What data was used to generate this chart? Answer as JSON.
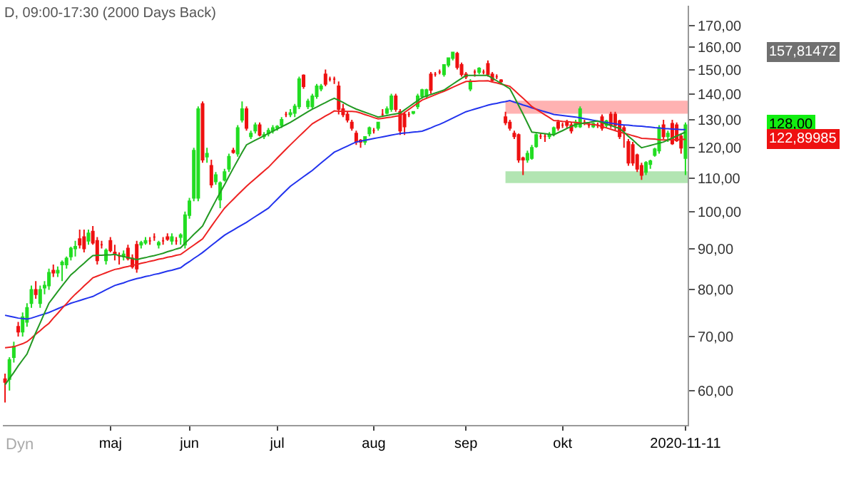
{
  "chart_data": {
    "type": "candlestick",
    "title": "D, 09:00-17:30 (2000 Days Back)",
    "categories": [
      null,
      null,
      null,
      null,
      null,
      null,
      null,
      null,
      null,
      null,
      null,
      null,
      null,
      null,
      null,
      null,
      null,
      null,
      null,
      null,
      null,
      null,
      null,
      null,
      "maj",
      null,
      null,
      null,
      null,
      null,
      null,
      null,
      null,
      null,
      null,
      null,
      null,
      null,
      null,
      null,
      null,
      null,
      "jun",
      null,
      null,
      null,
      null,
      null,
      null,
      null,
      null,
      null,
      null,
      null,
      null,
      null,
      null,
      null,
      null,
      null,
      null,
      null,
      "jul",
      null,
      null,
      null,
      null,
      null,
      null,
      null,
      null,
      null,
      null,
      null,
      null,
      null,
      null,
      null,
      null,
      null,
      null,
      null,
      null,
      null,
      "aug",
      null,
      null,
      null,
      null,
      null,
      null,
      null,
      null,
      null,
      null,
      null,
      null,
      null,
      null,
      null,
      null,
      null,
      null,
      null,
      null,
      "sep",
      null,
      null,
      null,
      null,
      null,
      null,
      null,
      null,
      null,
      null,
      null,
      null,
      null,
      null,
      null,
      null,
      null,
      null,
      null,
      null,
      null,
      "okt",
      null,
      null,
      null,
      null,
      null,
      null,
      null,
      null,
      null,
      null,
      null,
      null,
      null,
      null,
      null,
      null,
      null,
      null,
      null,
      null,
      null,
      null,
      null,
      null,
      null,
      null,
      null,
      "2020-11-11"
    ],
    "ohlc": [
      [
        62,
        63,
        58,
        61.5
      ],
      [
        62,
        66,
        60,
        65.5
      ],
      [
        66,
        69,
        65,
        68
      ],
      [
        72,
        73,
        70,
        71
      ],
      [
        71,
        75,
        70,
        74
      ],
      [
        73,
        77,
        72,
        76
      ],
      [
        77,
        81,
        76,
        80
      ],
      [
        80,
        82,
        78,
        79
      ],
      [
        77,
        81,
        76,
        80
      ],
      [
        80.5,
        82,
        79,
        81
      ],
      [
        81,
        85,
        80,
        84
      ],
      [
        84.5,
        86,
        83,
        84
      ],
      [
        84,
        85.5,
        83,
        84.5
      ],
      [
        86,
        87,
        82,
        86.5
      ],
      [
        86,
        88,
        85,
        87.5
      ],
      [
        88,
        90.5,
        87,
        90
      ],
      [
        90,
        92,
        88,
        90.5
      ],
      [
        92.5,
        95,
        90,
        91
      ],
      [
        93,
        95,
        89,
        90
      ],
      [
        92,
        95,
        91,
        94
      ],
      [
        94.5,
        96,
        91,
        91.5
      ],
      [
        92,
        93,
        86,
        87
      ],
      [
        91,
        92,
        90,
        91
      ],
      [
        87,
        90,
        86,
        89.5
      ],
      [
        92,
        93,
        89,
        89.5
      ],
      [
        89,
        91,
        87,
        88.5
      ],
      [
        88,
        89,
        86,
        88
      ],
      [
        88,
        89.5,
        87,
        88.5
      ],
      [
        90,
        91,
        87,
        87.5
      ],
      [
        87.5,
        88.5,
        85,
        85.5
      ],
      [
        91,
        92,
        84,
        85
      ],
      [
        91,
        92,
        90,
        91.5
      ],
      [
        91.5,
        93,
        91,
        92
      ],
      [
        92,
        93,
        91,
        92
      ],
      [
        93,
        94,
        92,
        93
      ],
      [
        91,
        92,
        90,
        91.5
      ],
      [
        92,
        93,
        91,
        92
      ],
      [
        93,
        94,
        92,
        92.5
      ],
      [
        92,
        94,
        91,
        93
      ],
      [
        92,
        93,
        91,
        92
      ],
      [
        93,
        94,
        91,
        93.5
      ],
      [
        91,
        100,
        90,
        99
      ],
      [
        99,
        104,
        98,
        103
      ],
      [
        104,
        120,
        103,
        119
      ],
      [
        104,
        135,
        103,
        134
      ],
      [
        136,
        137,
        115,
        116
      ],
      [
        117,
        120,
        115,
        118
      ],
      [
        114,
        116,
        107,
        108
      ],
      [
        109,
        112,
        108,
        111
      ],
      [
        103.5,
        109,
        101,
        108.5
      ],
      [
        109.5,
        113,
        109,
        112
      ],
      [
        113,
        118,
        112,
        117
      ],
      [
        119,
        120,
        118,
        118.5
      ],
      [
        118,
        128,
        117,
        127
      ],
      [
        130,
        137,
        129,
        134
      ],
      [
        134,
        135,
        126,
        127
      ],
      [
        124,
        126,
        123,
        125
      ],
      [
        126,
        129,
        125,
        128
      ],
      [
        128,
        129,
        124,
        124.5
      ],
      [
        124,
        125.5,
        123,
        124.5
      ],
      [
        125,
        127,
        124,
        126
      ],
      [
        126,
        128,
        125,
        127
      ],
      [
        127,
        128,
        126,
        127.5
      ],
      [
        128,
        131,
        127,
        130
      ],
      [
        132,
        133,
        131,
        132
      ],
      [
        132,
        134,
        131,
        132.5
      ],
      [
        132.5,
        136,
        131,
        135
      ],
      [
        135,
        147,
        134,
        146
      ],
      [
        147.5,
        148,
        142,
        143
      ],
      [
        135,
        138,
        134,
        137
      ],
      [
        135,
        140,
        134,
        139
      ],
      [
        139,
        144,
        138,
        143
      ],
      [
        142,
        144,
        141,
        143
      ],
      [
        148,
        150,
        143,
        144
      ],
      [
        146,
        147,
        145,
        146
      ],
      [
        146,
        147,
        144,
        146
      ],
      [
        143,
        145,
        132,
        134
      ],
      [
        134,
        136,
        131,
        132
      ],
      [
        132,
        133,
        129,
        130
      ],
      [
        129,
        130,
        126,
        127
      ],
      [
        125,
        126,
        121,
        122
      ],
      [
        122.5,
        123,
        120,
        122
      ],
      [
        122,
        124,
        121,
        123.8
      ],
      [
        125,
        127.5,
        124,
        127
      ],
      [
        126,
        127,
        125,
        126
      ],
      [
        127,
        129,
        126,
        129
      ],
      [
        132,
        134,
        131,
        132
      ],
      [
        132.5,
        135,
        132,
        134
      ],
      [
        134,
        140,
        133,
        139
      ],
      [
        139,
        140,
        133,
        134
      ],
      [
        133,
        134,
        124.5,
        126
      ],
      [
        132,
        133,
        124.5,
        127.5
      ],
      [
        132,
        133,
        131,
        132
      ],
      [
        132.5,
        133,
        132,
        133
      ],
      [
        135,
        140,
        134,
        139
      ],
      [
        139,
        142,
        138,
        141.5
      ],
      [
        139,
        142,
        138,
        141.5
      ],
      [
        148,
        149,
        140,
        141.5
      ],
      [
        148,
        149,
        147,
        148
      ],
      [
        149,
        150,
        148,
        149
      ],
      [
        148,
        152,
        147,
        152
      ],
      [
        152,
        155,
        151,
        155
      ],
      [
        155,
        157.8,
        154,
        157.5
      ],
      [
        157,
        157.8,
        150,
        151
      ],
      [
        152,
        153,
        147,
        148
      ],
      [
        148,
        149,
        146,
        147
      ],
      [
        142,
        146,
        141,
        145
      ],
      [
        149,
        150,
        147,
        149
      ],
      [
        149,
        151,
        148,
        150.5
      ],
      [
        149,
        150,
        148,
        149
      ],
      [
        152.5,
        154,
        147,
        148
      ],
      [
        148,
        149,
        145,
        145.5
      ],
      [
        147,
        148,
        146,
        147
      ],
      [
        145.5,
        146,
        144,
        145
      ],
      [
        131,
        133,
        128,
        129
      ],
      [
        129,
        130,
        126,
        127
      ],
      [
        125,
        126,
        123,
        124
      ],
      [
        124.5,
        125,
        115,
        116
      ],
      [
        116.5,
        117,
        111,
        116
      ],
      [
        116,
        119,
        115,
        118
      ],
      [
        116.5,
        121,
        116,
        120
      ],
      [
        120.5,
        125,
        120,
        124.5
      ],
      [
        124,
        125,
        123,
        124
      ],
      [
        124,
        125,
        122,
        124
      ],
      [
        124,
        125.5,
        123,
        124.5
      ],
      [
        125,
        127.5,
        124,
        127
      ],
      [
        129,
        130,
        126,
        127
      ],
      [
        128,
        129,
        127,
        128
      ],
      [
        129,
        130,
        127,
        128
      ],
      [
        128,
        129,
        125,
        126
      ],
      [
        127.5,
        130,
        127,
        129
      ],
      [
        127.5,
        135,
        127,
        134
      ],
      [
        129,
        130,
        128,
        129
      ],
      [
        128,
        129,
        127,
        128
      ],
      [
        127.5,
        129,
        127,
        128.5
      ],
      [
        128,
        129,
        127,
        128
      ],
      [
        131,
        132,
        126,
        127
      ],
      [
        128,
        130,
        127,
        129.5
      ],
      [
        132,
        133,
        127,
        128
      ],
      [
        132,
        133,
        126,
        128
      ],
      [
        129.5,
        130,
        123,
        124
      ],
      [
        127,
        128,
        120,
        126
      ],
      [
        122,
        123,
        114,
        115
      ],
      [
        121,
        122,
        114,
        115
      ],
      [
        117.5,
        118,
        112,
        113
      ],
      [
        114,
        115,
        109.5,
        111
      ],
      [
        112,
        115.5,
        111,
        115
      ],
      [
        114.5,
        116,
        113,
        115.5
      ],
      [
        117.5,
        120,
        117,
        119.5
      ],
      [
        119,
        128,
        118,
        127
      ],
      [
        128,
        130,
        123,
        124
      ],
      [
        124,
        126,
        122,
        125
      ],
      [
        128.5,
        130,
        121,
        121.5
      ],
      [
        128,
        129,
        122,
        122.5
      ],
      [
        124,
        125,
        118,
        120
      ],
      [
        116.5,
        129,
        111,
        128
      ]
    ],
    "colors": [
      "#ee1111",
      "#22dd22",
      "#22dd22",
      "#ee1111",
      "#22dd22",
      "#22dd22",
      "#22dd22",
      "#ee1111",
      "#22dd22",
      "#22dd22",
      "#22dd22",
      "#ee1111",
      "#22dd22",
      "#22dd22",
      "#22dd22",
      "#22dd22",
      "#22dd22",
      "#ee1111",
      "#ee1111",
      "#22dd22",
      "#ee1111",
      "#ee1111",
      "#ee1111",
      "#22dd22",
      "#ee1111",
      "#ee1111",
      "#ee1111",
      "#22dd22",
      "#ee1111",
      "#ee1111",
      "#ee1111",
      "#22dd22",
      "#22dd22",
      "#ee1111",
      "#ee1111",
      "#22dd22",
      "#ee1111",
      "#ee1111",
      "#22dd22",
      "#ee1111",
      "#22dd22",
      "#22dd22",
      "#22dd22",
      "#22dd22",
      "#22dd22",
      "#ee1111",
      "#22dd22",
      "#ee1111",
      "#22dd22",
      "#22dd22",
      "#22dd22",
      "#22dd22",
      "#ee1111",
      "#22dd22",
      "#22dd22",
      "#ee1111",
      "#22dd22",
      "#22dd22",
      "#ee1111",
      "#22dd22",
      "#22dd22",
      "#22dd22",
      "#22dd22",
      "#22dd22",
      "#ee1111",
      "#22dd22",
      "#22dd22",
      "#22dd22",
      "#ee1111",
      "#22dd22",
      "#22dd22",
      "#22dd22",
      "#22dd22",
      "#ee1111",
      "#ee1111",
      "#ee1111",
      "#ee1111",
      "#ee1111",
      "#ee1111",
      "#ee1111",
      "#ee1111",
      "#ee1111",
      "#22dd22",
      "#22dd22",
      "#ee1111",
      "#22dd22",
      "#ee1111",
      "#22dd22",
      "#22dd22",
      "#ee1111",
      "#ee1111",
      "#ee1111",
      "#ee1111",
      "#22dd22",
      "#22dd22",
      "#22dd22",
      "#22dd22",
      "#ee1111",
      "#ee1111",
      "#ee1111",
      "#22dd22",
      "#22dd22",
      "#22dd22",
      "#ee1111",
      "#ee1111",
      "#ee1111",
      "#22dd22",
      "#ee1111",
      "#22dd22",
      "#ee1111",
      "#ee1111",
      "#ee1111",
      "#ee1111",
      "#ee1111",
      "#ee1111",
      "#ee1111",
      "#ee1111",
      "#ee1111",
      "#ee1111",
      "#22dd22",
      "#22dd22",
      "#22dd22",
      "#ee1111",
      "#ee1111",
      "#22dd22",
      "#22dd22",
      "#ee1111",
      "#ee1111",
      "#ee1111",
      "#ee1111",
      "#22dd22",
      "#22dd22",
      "#ee1111",
      "#ee1111",
      "#22dd22",
      "#ee1111",
      "#ee1111",
      "#22dd22",
      "#ee1111",
      "#ee1111",
      "#ee1111",
      "#ee1111",
      "#ee1111",
      "#ee1111",
      "#ee1111",
      "#ee1111",
      "#22dd22",
      "#22dd22",
      "#22dd22",
      "#22dd22",
      "#ee1111",
      "#22dd22",
      "#ee1111",
      "#ee1111",
      "#ee1111",
      "#22dd22"
    ],
    "series": [
      {
        "type": "line",
        "color": "#2233ee",
        "values": [
          74.4,
          74.2,
          74.0,
          73.8,
          73.7,
          73.6,
          73.8,
          74.1,
          74.4,
          74.7,
          75,
          75.4,
          75.8,
          76.2,
          76.6,
          77,
          77.3,
          77.6,
          77.9,
          78.2,
          78.5,
          79,
          79.5,
          80,
          80.5,
          81,
          81.3,
          81.6,
          82,
          82.3,
          82.6,
          82.8,
          83.1,
          83.3,
          83.6,
          83.8,
          84.1,
          84.4,
          84.6,
          84.9,
          85.2,
          86,
          86.7,
          87.5,
          88.2,
          89,
          89.9,
          90.8,
          91.7,
          92.6,
          93.5,
          94.2,
          94.9,
          95.6,
          96.3,
          97,
          97.8,
          98.6,
          99.4,
          100.2,
          101,
          102.3,
          103.6,
          104.9,
          106.2,
          107.5,
          108.5,
          109.5,
          110.5,
          111.5,
          112.5,
          113.7,
          114.9,
          116.1,
          117.3,
          118.5,
          119.2,
          119.9,
          120.6,
          121.3,
          122,
          122.3,
          122.6,
          122.9,
          123.2,
          123.5,
          123.8,
          124.1,
          124.4,
          124.7,
          125,
          125.2,
          125.3,
          125.5,
          125.6,
          125.8,
          126.4,
          127,
          127.7,
          128.3,
          129,
          129.8,
          130.6,
          131.4,
          132.2,
          133,
          133.5,
          134,
          134.5,
          135,
          135.5,
          135.9,
          136.2,
          136.6,
          136.9,
          137.3,
          136.7,
          136.2,
          135.6,
          135.1,
          134.5,
          134,
          133.5,
          133,
          132.5,
          132,
          131.8,
          131.6,
          131.4,
          131.2,
          131,
          130.7,
          130.4,
          130.1,
          129.8,
          129.5,
          129.2,
          129,
          128.7,
          128.5,
          128.2,
          128.1,
          128,
          127.8,
          127.7,
          127.6,
          127.4,
          127.3,
          127.1,
          127,
          126.8,
          126.7,
          126.6,
          126.5,
          126.4,
          126.4
        ]
      },
      {
        "type": "line",
        "color": "#ee2222",
        "values": [
          67.8,
          67.9,
          68,
          68.3,
          68.6,
          69,
          69.7,
          70.5,
          71.2,
          72,
          72.7,
          73.8,
          74.8,
          75.9,
          76.9,
          78,
          79,
          79.9,
          80.9,
          81.8,
          82.8,
          83.2,
          83.6,
          84,
          84.4,
          84.8,
          85,
          85.3,
          85.5,
          85.8,
          86,
          86.3,
          86.5,
          86.8,
          87,
          87.3,
          87.5,
          87.8,
          88,
          88.3,
          88.5,
          89.3,
          90.1,
          90.9,
          91.7,
          92.5,
          94.2,
          95.9,
          97.6,
          99.3,
          101,
          102.3,
          103.6,
          104.9,
          106.2,
          107.5,
          108.7,
          109.9,
          111.1,
          112.3,
          113.5,
          115,
          116.5,
          118,
          119.5,
          121,
          122.5,
          124,
          125.5,
          127,
          128.5,
          129.5,
          130.4,
          131.4,
          132.3,
          133.3,
          133.2,
          133.2,
          133.1,
          133.1,
          133,
          132.5,
          131.9,
          131.4,
          130.8,
          130.3,
          130.5,
          130.8,
          131,
          131.3,
          131.5,
          132.7,
          133.9,
          135.1,
          136.3,
          137.5,
          138.2,
          138.9,
          139.6,
          140.3,
          141,
          141.8,
          142.6,
          143.4,
          144.2,
          145,
          145.1,
          145.1,
          145.2,
          145.2,
          145.3,
          144.8,
          144.4,
          143.9,
          143.5,
          143,
          141.4,
          139.8,
          138.2,
          136.6,
          135,
          133.9,
          132.9,
          131.8,
          130.8,
          129.7,
          129.6,
          129.4,
          129.3,
          129.1,
          129,
          128.8,
          128.6,
          128.4,
          128.2,
          128,
          127.5,
          127,
          126.5,
          126,
          125.5,
          125.1,
          124.7,
          124.2,
          123.8,
          123.3,
          123.2,
          123.1,
          123,
          122.8,
          122.7,
          122.7,
          122.8,
          122.8,
          122.9,
          122.9
        ]
      },
      {
        "type": "line",
        "color": "#229922",
        "values": [
          61,
          62.1,
          63.2,
          64.4,
          65.5,
          66.6,
          68.7,
          70.8,
          72.8,
          74.9,
          77,
          78.3,
          79.6,
          80.9,
          82.2,
          83.5,
          84.4,
          85.4,
          86.3,
          87.3,
          88.2,
          88.3,
          88.3,
          88.4,
          88.4,
          88.5,
          88.2,
          88,
          87.7,
          87.5,
          87.2,
          87.5,
          87.7,
          88,
          88.2,
          88.5,
          88.8,
          89.2,
          89.5,
          89.9,
          90.2,
          91.4,
          92.5,
          93.7,
          94.8,
          96,
          98.4,
          100.8,
          103.2,
          105.6,
          108,
          110.6,
          113.2,
          115.8,
          118.4,
          121,
          121.8,
          122.6,
          123.4,
          124.2,
          125,
          125.8,
          126.6,
          127.4,
          128.2,
          129,
          130,
          131,
          132,
          133,
          134,
          134.8,
          135.7,
          136.5,
          137.4,
          138.2,
          137.4,
          136.6,
          135.6,
          134.8,
          134,
          133.4,
          132.8,
          132.2,
          131.6,
          131,
          131.3,
          131.6,
          131.9,
          132.2,
          132.5,
          133.7,
          134.9,
          136.1,
          137.3,
          138.5,
          139.1,
          139.7,
          140.3,
          140.9,
          141.5,
          142.7,
          143.9,
          145.1,
          146.3,
          147.5,
          147.5,
          147.5,
          147.5,
          147.5,
          147.5,
          146.4,
          145.3,
          144.2,
          143.1,
          142,
          138.7,
          135.4,
          132.1,
          128.8,
          125.5,
          125.3,
          125.1,
          124.9,
          124.7,
          124.5,
          125.3,
          126,
          126.8,
          127.5,
          128.3,
          128.5,
          128.8,
          129,
          129.3,
          129.5,
          129,
          128.4,
          127.9,
          127.3,
          126.8,
          125.4,
          124,
          122.7,
          121.3,
          120,
          120.4,
          120.8,
          121.2,
          121.6,
          122,
          122.7,
          123.4,
          124.1,
          124.8,
          125.5
        ]
      }
    ],
    "bands": [
      {
        "axis": "y",
        "from": 132.5,
        "to": 137,
        "color": "#ff9999"
      },
      {
        "axis": "y",
        "from": 108.7,
        "to": 112,
        "color": "#99dd99"
      }
    ],
    "annotations": [
      "157,81472",
      "128,00",
      "122,89985",
      "Dyn"
    ],
    "log": true,
    "ylim": [
      54.4,
      180
    ],
    "yticks": [
      {
        "value": 60,
        "label": "60,00"
      },
      {
        "value": 70,
        "label": "70,00"
      },
      {
        "value": 80,
        "label": "80,00"
      },
      {
        "value": 90,
        "label": "90,00"
      },
      {
        "value": 100,
        "label": "100,00"
      },
      {
        "value": 110,
        "label": "110,00"
      },
      {
        "value": 120,
        "label": "120,00"
      },
      {
        "value": 130,
        "label": "130,00"
      },
      {
        "value": 140,
        "label": "140,00"
      },
      {
        "value": 150,
        "label": "150,00"
      },
      {
        "value": 160,
        "label": "160,00"
      },
      {
        "value": 170,
        "label": "170,00"
      }
    ],
    "tick_labels": "xy"
  }
}
